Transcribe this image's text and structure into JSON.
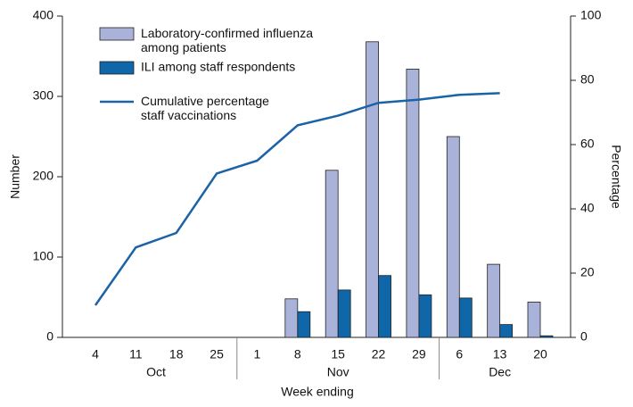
{
  "chart_data": {
    "type": "bar-line",
    "x_label": "Week ending",
    "y_label": "Number",
    "y2_label": "Percentage",
    "categories": [
      "4",
      "11",
      "18",
      "25",
      "1",
      "8",
      "15",
      "22",
      "29",
      "6",
      "13",
      "20"
    ],
    "x_groups": [
      {
        "label": "Oct",
        "count": 4
      },
      {
        "label": "Nov",
        "count": 5
      },
      {
        "label": "Dec",
        "count": 3
      }
    ],
    "series": [
      {
        "name": "Laboratory-confirmed influenza\namong patients",
        "type": "bar",
        "color": "#a9b2d8",
        "values": [
          null,
          null,
          null,
          null,
          null,
          48,
          208,
          368,
          334,
          250,
          91,
          44
        ]
      },
      {
        "name": "ILI among staff respondents",
        "type": "bar",
        "color": "#0f66a9",
        "values": [
          null,
          null,
          null,
          null,
          null,
          32,
          59,
          77,
          53,
          49,
          16,
          2
        ]
      },
      {
        "name": "Cumulative percentage\nstaff vaccinations",
        "type": "line",
        "axis": "y2",
        "color": "#1a63a6",
        "values": [
          10,
          28,
          32.5,
          51,
          55,
          66,
          69,
          73,
          74,
          75.5,
          76,
          null
        ]
      }
    ],
    "ylim": [
      0,
      400
    ],
    "yticks": [
      0,
      100,
      200,
      300,
      400
    ],
    "y2lim": [
      0,
      100
    ],
    "y2ticks": [
      0,
      20,
      40,
      60,
      80,
      100
    ]
  }
}
